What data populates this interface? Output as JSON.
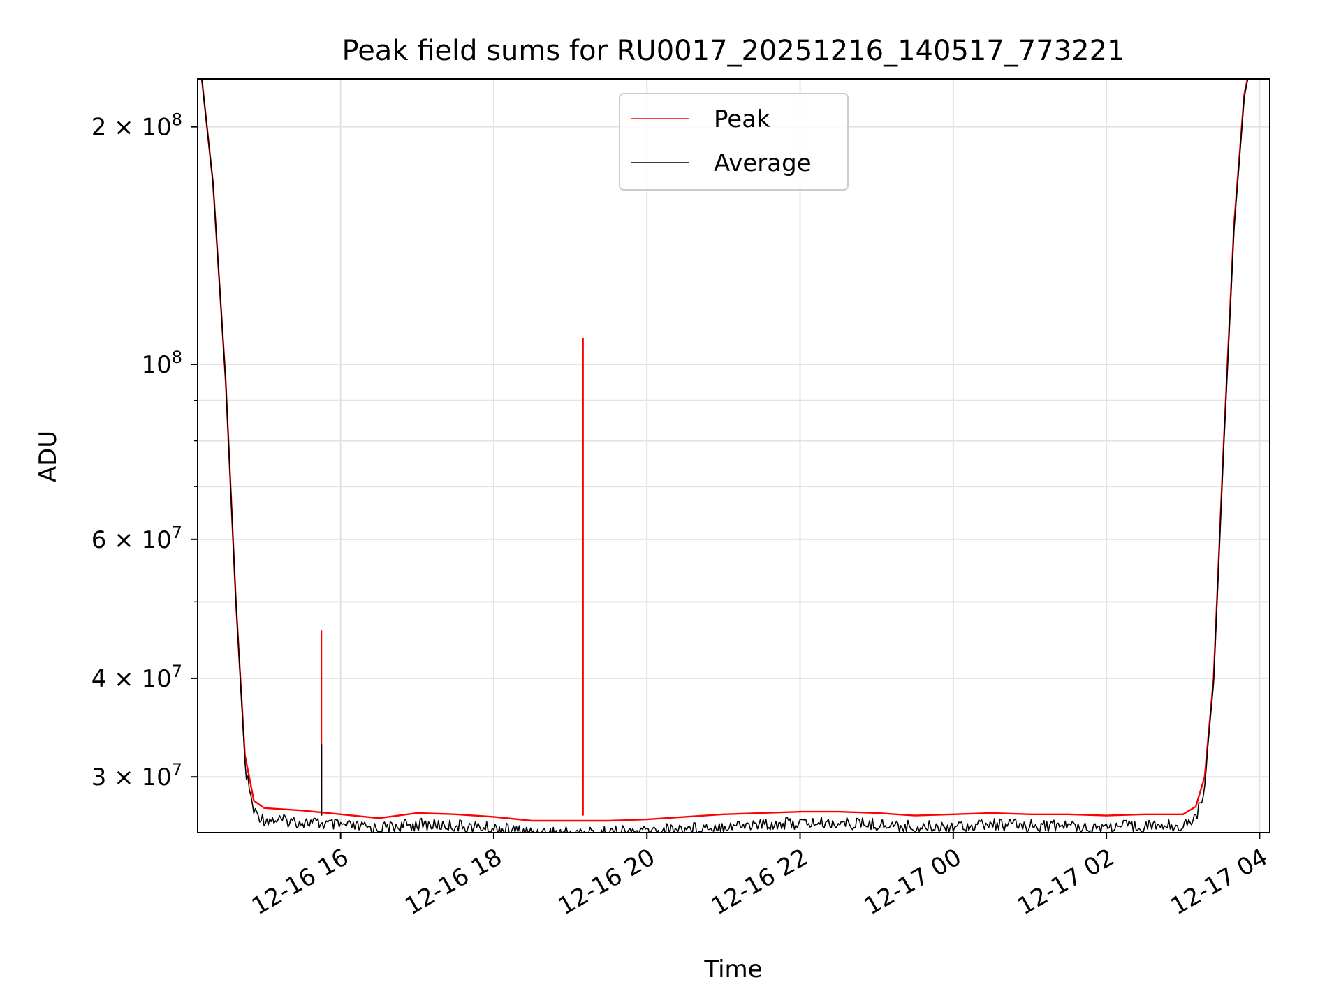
{
  "chart_data": {
    "type": "line",
    "title": "Peak field sums for RU0017_20251216_140517_773221",
    "xlabel": "Time",
    "ylabel": "ADU",
    "y_scale": "log",
    "ylim": [
      25500000,
      230000000
    ],
    "xlim": [
      "2025-12-16 14:08",
      "2025-12-17 04:08"
    ],
    "grid": true,
    "legend_position": "upper center",
    "x_ticks": [
      {
        "t": "2025-12-16 16:00",
        "label": "12-16 16"
      },
      {
        "t": "2025-12-16 18:00",
        "label": "12-16 18"
      },
      {
        "t": "2025-12-16 20:00",
        "label": "12-16 20"
      },
      {
        "t": "2025-12-16 22:00",
        "label": "12-16 22"
      },
      {
        "t": "2025-12-17 00:00",
        "label": "12-17 00"
      },
      {
        "t": "2025-12-17 02:00",
        "label": "12-17 02"
      },
      {
        "t": "2025-12-17 04:00",
        "label": "12-17 04"
      }
    ],
    "y_ticks": [
      {
        "v": 30000000,
        "base": "3 × 10",
        "exp": "7"
      },
      {
        "v": 40000000,
        "base": "4 × 10",
        "exp": "7"
      },
      {
        "v": 60000000,
        "base": "6 × 10",
        "exp": "7"
      },
      {
        "v": 100000000,
        "base": "10",
        "exp": "8"
      },
      {
        "v": 200000000,
        "base": "2 × 10",
        "exp": "8"
      }
    ],
    "y_minor_ticks": [
      50000000,
      70000000,
      80000000,
      90000000
    ],
    "series": [
      {
        "name": "Peak",
        "color": "#ff0000",
        "points": [
          [
            "2025-12-16 14:10",
            240000000
          ],
          [
            "2025-12-16 14:20",
            170000000
          ],
          [
            "2025-12-16 14:30",
            95000000
          ],
          [
            "2025-12-16 14:38",
            50000000
          ],
          [
            "2025-12-16 14:45",
            32000000
          ],
          [
            "2025-12-16 14:52",
            28000000
          ],
          [
            "2025-12-16 15:00",
            27400000
          ],
          [
            "2025-12-16 15:30",
            27200000
          ],
          [
            "2025-12-16 16:00",
            26900000
          ],
          [
            "2025-12-16 16:30",
            26600000
          ],
          [
            "2025-12-16 17:00",
            27000000
          ],
          [
            "2025-12-16 17:30",
            26900000
          ],
          [
            "2025-12-16 18:00",
            26700000
          ],
          [
            "2025-12-16 18:30",
            26400000
          ],
          [
            "2025-12-16 19:00",
            26400000
          ],
          [
            "2025-12-16 19:30",
            26400000
          ],
          [
            "2025-12-16 20:00",
            26500000
          ],
          [
            "2025-12-16 20:30",
            26700000
          ],
          [
            "2025-12-16 21:00",
            26900000
          ],
          [
            "2025-12-16 21:30",
            27000000
          ],
          [
            "2025-12-16 22:00",
            27100000
          ],
          [
            "2025-12-16 22:30",
            27100000
          ],
          [
            "2025-12-16 23:00",
            27000000
          ],
          [
            "2025-12-16 23:30",
            26800000
          ],
          [
            "2025-12-17 00:00",
            26900000
          ],
          [
            "2025-12-17 00:30",
            27000000
          ],
          [
            "2025-12-17 01:00",
            26900000
          ],
          [
            "2025-12-17 01:30",
            26900000
          ],
          [
            "2025-12-17 02:00",
            26800000
          ],
          [
            "2025-12-17 02:30",
            26900000
          ],
          [
            "2025-12-17 03:00",
            26900000
          ],
          [
            "2025-12-17 03:10",
            27500000
          ],
          [
            "2025-12-17 03:17",
            30000000
          ],
          [
            "2025-12-17 03:24",
            40000000
          ],
          [
            "2025-12-17 03:32",
            80000000
          ],
          [
            "2025-12-17 03:40",
            150000000
          ],
          [
            "2025-12-17 03:48",
            220000000
          ],
          [
            "2025-12-17 03:53",
            240000000
          ]
        ],
        "spikes": [
          {
            "t": "2025-12-16 15:45",
            "value": 46000000
          },
          {
            "t": "2025-12-16 19:10",
            "value": 108000000
          }
        ]
      },
      {
        "name": "Average",
        "color": "#000000",
        "points": [
          [
            "2025-12-16 14:10",
            240000000
          ],
          [
            "2025-12-16 14:20",
            170000000
          ],
          [
            "2025-12-16 14:30",
            95000000
          ],
          [
            "2025-12-16 14:38",
            50000000
          ],
          [
            "2025-12-16 14:45",
            31500000
          ],
          [
            "2025-12-16 14:52",
            27600000
          ],
          [
            "2025-12-16 15:00",
            27000000
          ],
          [
            "2025-12-16 15:30",
            26800000
          ],
          [
            "2025-12-16 16:00",
            26500000
          ],
          [
            "2025-12-16 16:30",
            26300000
          ],
          [
            "2025-12-16 17:00",
            26600000
          ],
          [
            "2025-12-16 17:30",
            26500000
          ],
          [
            "2025-12-16 18:00",
            26300000
          ],
          [
            "2025-12-16 18:30",
            26000000
          ],
          [
            "2025-12-16 19:00",
            26000000
          ],
          [
            "2025-12-16 19:30",
            26000000
          ],
          [
            "2025-12-16 20:00",
            26100000
          ],
          [
            "2025-12-16 20:30",
            26300000
          ],
          [
            "2025-12-16 21:00",
            26500000
          ],
          [
            "2025-12-16 21:30",
            26600000
          ],
          [
            "2025-12-16 22:00",
            26700000
          ],
          [
            "2025-12-16 22:30",
            26700000
          ],
          [
            "2025-12-16 23:00",
            26600000
          ],
          [
            "2025-12-16 23:30",
            26400000
          ],
          [
            "2025-12-17 00:00",
            26500000
          ],
          [
            "2025-12-17 00:30",
            26600000
          ],
          [
            "2025-12-17 01:00",
            26500000
          ],
          [
            "2025-12-17 01:30",
            26500000
          ],
          [
            "2025-12-17 02:00",
            26400000
          ],
          [
            "2025-12-17 02:30",
            26500000
          ],
          [
            "2025-12-17 03:00",
            26500000
          ],
          [
            "2025-12-17 03:10",
            27100000
          ],
          [
            "2025-12-17 03:17",
            29600000
          ],
          [
            "2025-12-17 03:24",
            39500000
          ],
          [
            "2025-12-17 03:32",
            79000000
          ],
          [
            "2025-12-17 03:40",
            148000000
          ],
          [
            "2025-12-17 03:48",
            218000000
          ],
          [
            "2025-12-17 03:53",
            240000000
          ]
        ],
        "spikes": [
          {
            "t": "2025-12-16 15:45",
            "value": 33000000
          }
        ],
        "noise_amplitude": 0.015
      }
    ]
  }
}
